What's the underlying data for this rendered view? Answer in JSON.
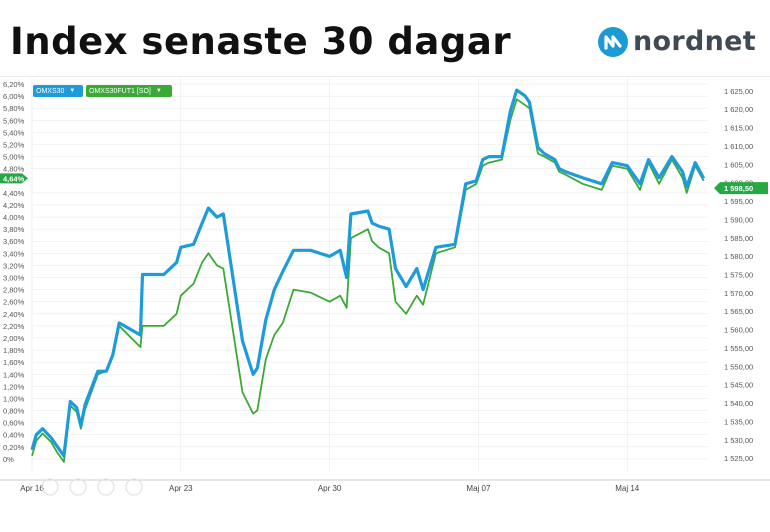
{
  "header": {
    "title": "Index senaste 30 dagar",
    "brand": "nordnet"
  },
  "colors": {
    "omxs30": "#1e9bdb",
    "future": "#3aa935",
    "brand_blue": "#1b9ad6",
    "brand_gray": "#3f4a55",
    "grid": "#e9e9e9",
    "marker_bg": "#28a745"
  },
  "chart_data": {
    "type": "line",
    "legend": [
      {
        "name": "OMXS30",
        "color": "#1e9bdb"
      },
      {
        "name": "OMXS30FUT1 [SO]",
        "color": "#3aa935"
      }
    ],
    "x_ticks": [
      "Apr 16",
      "Apr 23",
      "Apr 30",
      "Maj 07",
      "Maj 14"
    ],
    "left_axis": {
      "unit": "percent change",
      "ylim": [
        -0.2,
        6.3
      ],
      "ticks": [
        "6,20%",
        "6,00%",
        "5,80%",
        "5,60%",
        "5,40%",
        "5,20%",
        "5,00%",
        "4,80%",
        "4,40%",
        "4,20%",
        "4,00%",
        "3,80%",
        "3,60%",
        "3,40%",
        "3,20%",
        "3,00%",
        "2,80%",
        "2,60%",
        "2,40%",
        "2,20%",
        "2,00%",
        "1,80%",
        "1,60%",
        "1,40%",
        "1,20%",
        "1,00%",
        "0,80%",
        "0,60%",
        "0,40%",
        "0,20%",
        "0%"
      ]
    },
    "right_axis": {
      "unit": "index points",
      "ylim": [
        1521.5,
        1628.5
      ],
      "ticks": [
        "1 625,00",
        "1 620,00",
        "1 615,00",
        "1 610,00",
        "1 605,00",
        "1 600,00",
        "1 595,00",
        "1 590,00",
        "1 585,00",
        "1 580,00",
        "1 575,00",
        "1 570,00",
        "1 565,00",
        "1 560,00",
        "1 555,00",
        "1 550,00",
        "1 545,00",
        "1 540,00",
        "1 535,00",
        "1 530,00",
        "1 525,00"
      ]
    },
    "current_marker_left": "4,64%",
    "current_marker_right": "1 598,50",
    "series": [
      {
        "name": "OMXS30",
        "x": [
          0,
          0.2,
          0.5,
          0.9,
          1.2,
          1.5,
          1.8,
          2.1,
          2.3,
          2.5,
          3.1,
          3.5,
          3.8,
          4.1,
          5.1,
          5.2,
          6.2,
          6.8,
          7.0,
          7.6,
          8.0,
          8.3,
          8.7,
          9.0,
          9.9,
          10.4,
          10.6,
          11.0,
          11.4,
          11.8,
          12.3,
          13.1,
          14.0,
          14.5,
          14.8,
          15.0,
          15.8,
          16.0,
          16.3,
          16.8,
          17.1,
          17.6,
          18.1,
          18.4,
          19.0,
          19.9,
          20.4,
          20.9,
          21.2,
          21.5,
          22.1,
          22.5,
          22.8,
          23.2,
          23.4,
          23.8,
          24.1,
          24.6,
          24.8,
          25.1,
          25.9,
          26.8,
          27.3,
          28.0,
          28.6,
          29.0,
          29.5,
          30.1,
          30.6,
          30.8,
          31.2,
          31.6
        ],
        "y": [
          0.15,
          0.4,
          0.5,
          0.35,
          0.2,
          0.05,
          0.95,
          0.85,
          0.55,
          0.9,
          1.45,
          1.45,
          1.72,
          2.25,
          2.05,
          3.05,
          3.05,
          3.25,
          3.5,
          3.55,
          3.9,
          4.15,
          4.0,
          4.05,
          1.95,
          1.4,
          1.5,
          2.3,
          2.8,
          3.1,
          3.45,
          3.45,
          3.35,
          3.45,
          3.0,
          4.05,
          4.1,
          3.9,
          3.85,
          3.8,
          3.15,
          2.85,
          3.15,
          2.8,
          3.5,
          3.55,
          4.55,
          4.6,
          4.95,
          5.0,
          5.0,
          5.75,
          6.1,
          6.0,
          5.9,
          5.15,
          5.05,
          4.95,
          4.8,
          4.75,
          4.65,
          4.55,
          4.9,
          4.85,
          4.55,
          4.95,
          4.65,
          5.0,
          4.75,
          4.5,
          4.9,
          4.64
        ]
      },
      {
        "name": "OMXS30FUT1 [SO]",
        "x": [
          0,
          0.2,
          0.5,
          0.9,
          1.2,
          1.5,
          1.8,
          2.1,
          2.3,
          2.5,
          3.1,
          3.5,
          3.8,
          4.1,
          5.1,
          5.2,
          6.2,
          6.8,
          7.0,
          7.6,
          8.0,
          8.3,
          8.7,
          9.0,
          9.9,
          10.4,
          10.6,
          11.0,
          11.4,
          11.8,
          12.3,
          13.1,
          14.0,
          14.5,
          14.8,
          15.0,
          15.8,
          16.0,
          16.3,
          16.8,
          17.1,
          17.6,
          18.1,
          18.4,
          19.0,
          19.9,
          20.4,
          20.9,
          21.2,
          21.5,
          22.1,
          22.5,
          22.8,
          23.2,
          23.4,
          23.8,
          24.1,
          24.6,
          24.8,
          25.1,
          25.9,
          26.8,
          27.3,
          28.0,
          28.6,
          29.0,
          29.5,
          30.1,
          30.6,
          30.8,
          31.2,
          31.6
        ],
        "y": [
          0.05,
          0.3,
          0.42,
          0.28,
          0.1,
          -0.05,
          0.88,
          0.78,
          0.5,
          0.82,
          1.4,
          1.45,
          1.7,
          2.2,
          1.85,
          2.2,
          2.2,
          2.4,
          2.7,
          2.9,
          3.25,
          3.4,
          3.2,
          3.15,
          1.1,
          0.75,
          0.8,
          1.65,
          2.05,
          2.25,
          2.8,
          2.75,
          2.6,
          2.7,
          2.5,
          3.65,
          3.8,
          3.6,
          3.5,
          3.4,
          2.6,
          2.4,
          2.7,
          2.55,
          3.4,
          3.5,
          4.45,
          4.55,
          4.85,
          4.9,
          4.95,
          5.6,
          5.95,
          5.85,
          5.8,
          5.05,
          5.0,
          4.9,
          4.75,
          4.7,
          4.55,
          4.45,
          4.85,
          4.8,
          4.45,
          4.9,
          4.55,
          4.95,
          4.65,
          4.4,
          4.85,
          4.6
        ]
      }
    ],
    "x_range": [
      0,
      31.8
    ],
    "x_tick_positions": [
      0,
      7,
      14,
      21,
      28
    ],
    "grid": true
  }
}
